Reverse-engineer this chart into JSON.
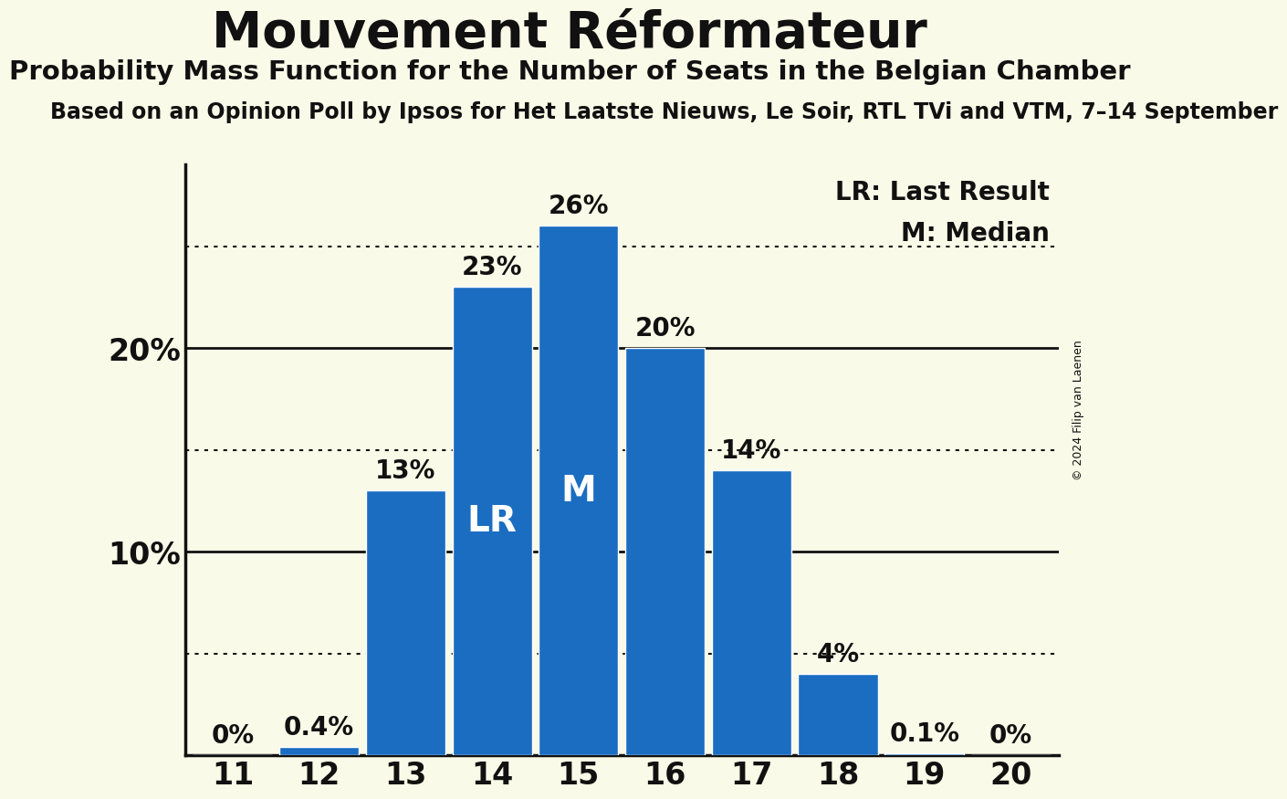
{
  "title": "Mouvement Réformateur",
  "subtitle": "Probability Mass Function for the Number of Seats in the Belgian Chamber",
  "subtitle2": "Based on an Opinion Poll by Ipsos for Het Laatste Nieuws, Le Soir, RTL TVi and VTM, 7–14 September",
  "copyright": "© 2024 Filip van Laenen",
  "seats": [
    11,
    12,
    13,
    14,
    15,
    16,
    17,
    18,
    19,
    20
  ],
  "probabilities": [
    0.0,
    0.4,
    13.0,
    23.0,
    26.0,
    20.0,
    14.0,
    4.0,
    0.1,
    0.0
  ],
  "bar_color": "#1B6DC1",
  "background_color": "#FAFAE8",
  "text_color": "#111111",
  "lr_seat": 14,
  "median_seat": 15,
  "yticks": [
    10,
    20
  ],
  "dotted_gridlines": [
    5,
    15,
    25
  ],
  "ylim": [
    0,
    29
  ],
  "bar_label_fontsize": 20,
  "title_fontsize": 40,
  "subtitle_fontsize": 21,
  "subtitle2_fontsize": 17,
  "axis_tick_fontsize": 24,
  "legend_fontsize": 20,
  "inner_label_fontsize": 28
}
